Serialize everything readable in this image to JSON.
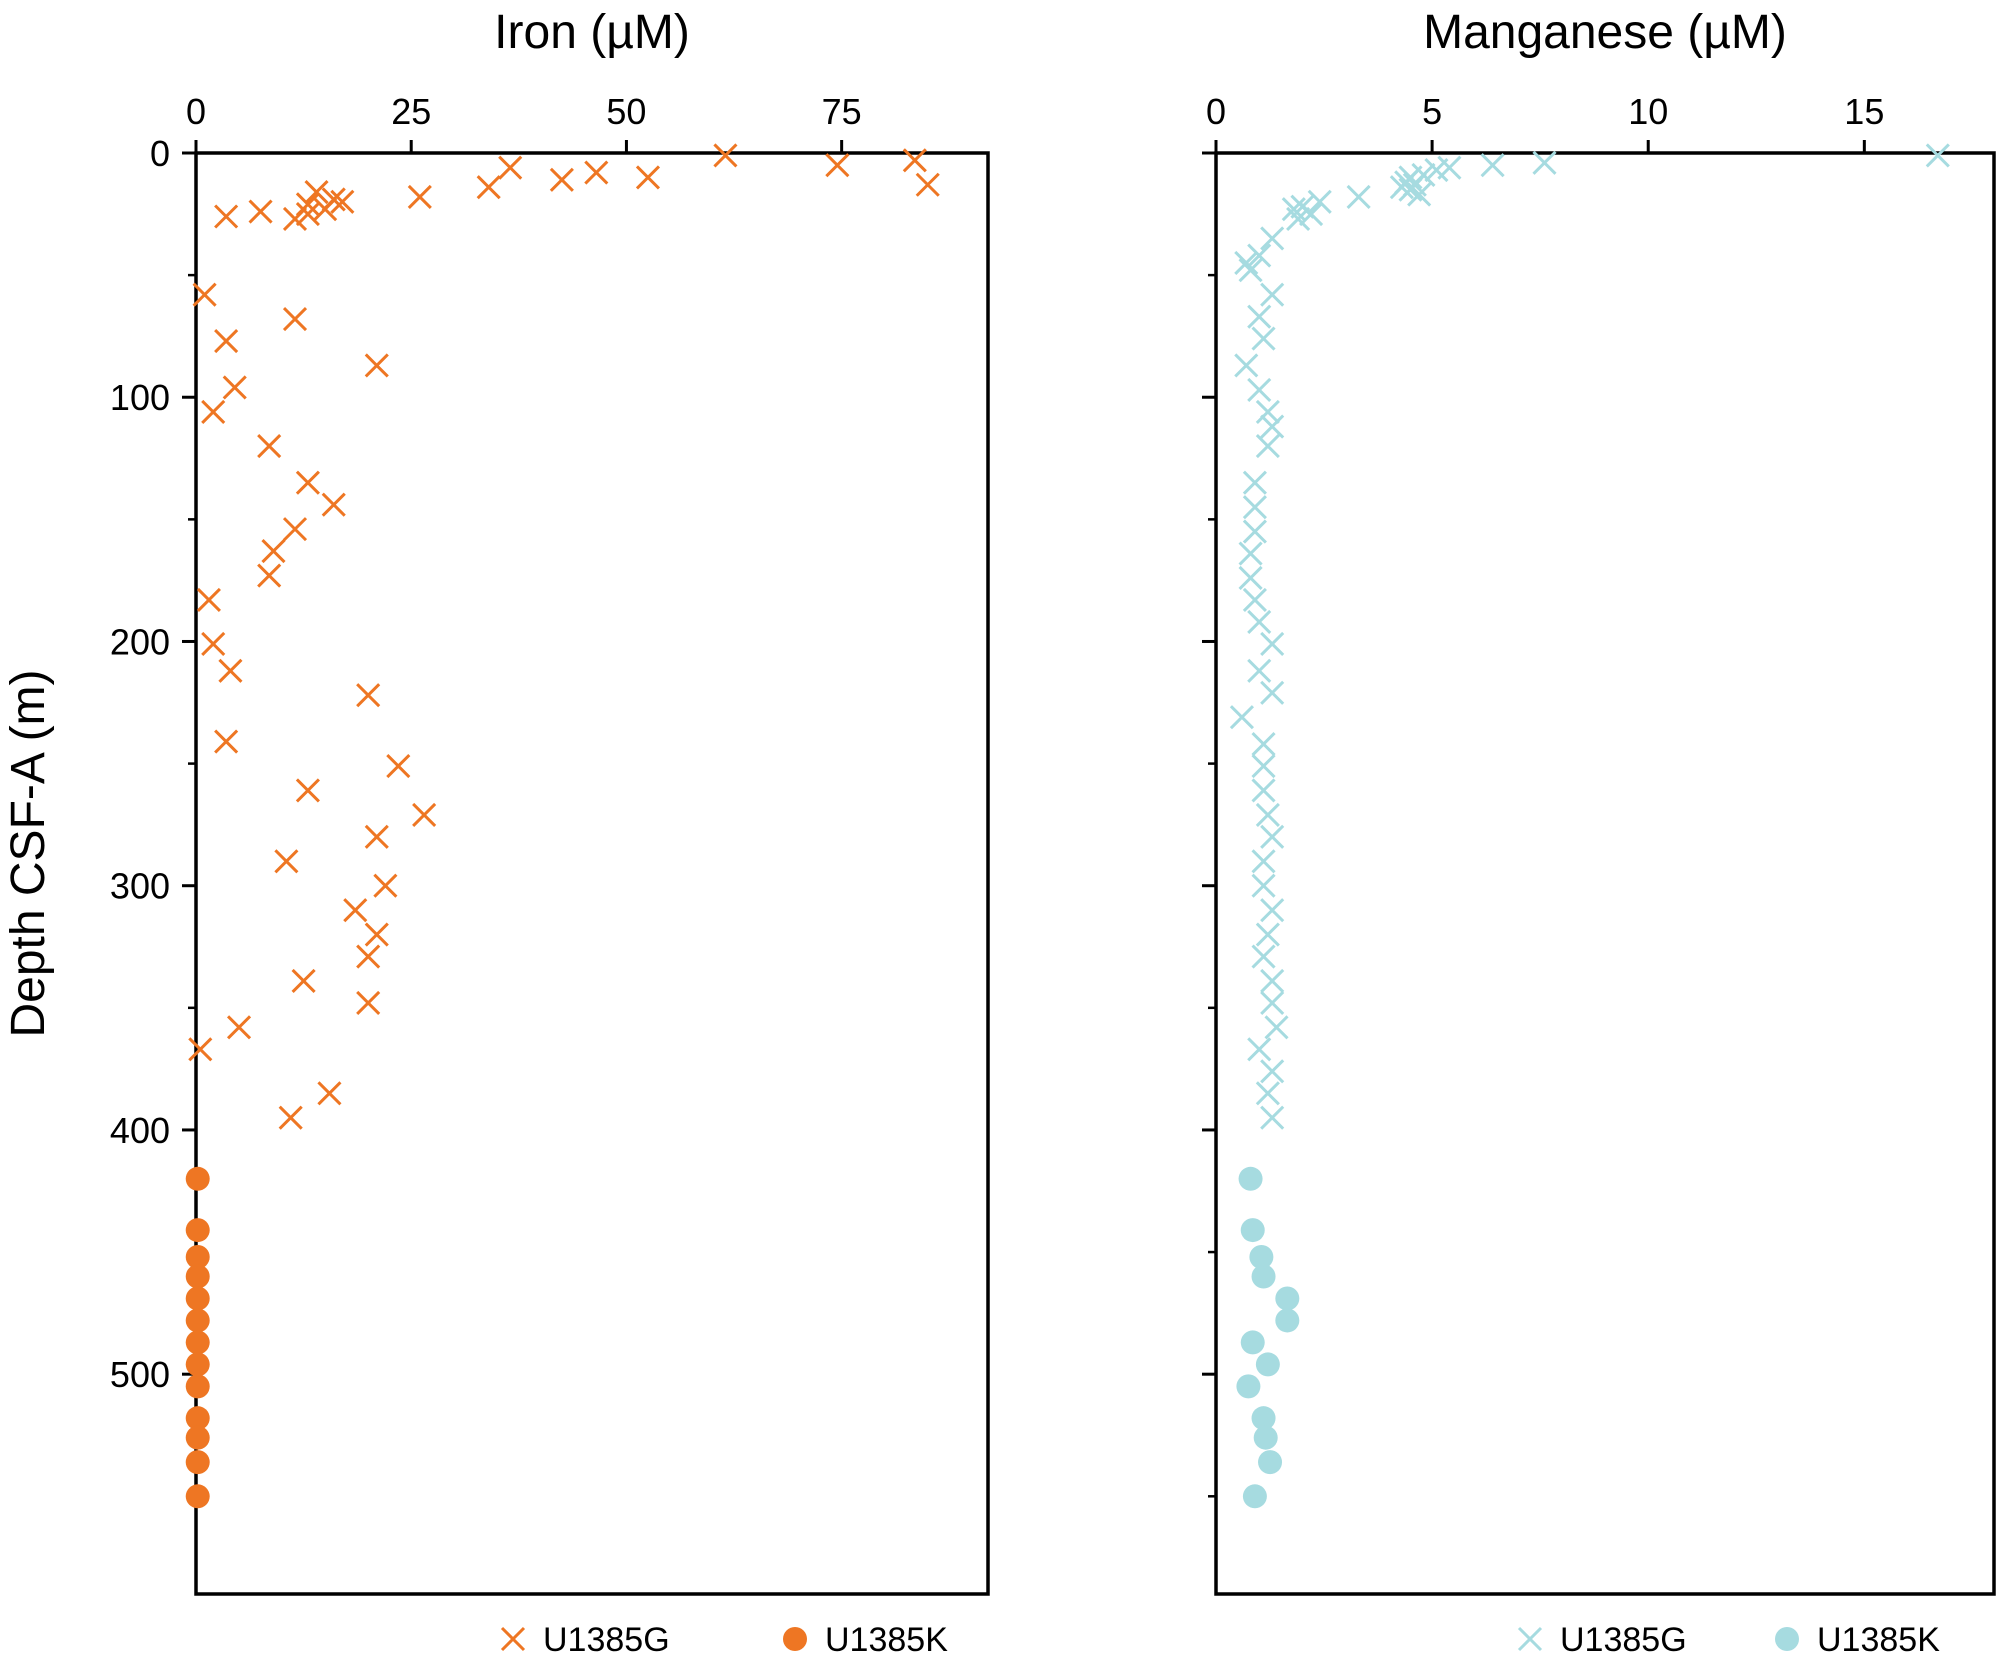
{
  "chart_data": [
    {
      "type": "scatter",
      "title": "",
      "xlabel": "Iron (µM)",
      "ylabel": "Depth CSF-A (m)",
      "xlim": [
        0,
        92
      ],
      "ylim": [
        0,
        590
      ],
      "y_inverted": true,
      "x_axis_position": "top",
      "xticks": [
        0,
        25,
        50,
        75
      ],
      "yticks": [
        0,
        100,
        200,
        300,
        400,
        500
      ],
      "y_minor_ticks": [
        50,
        150,
        250,
        350,
        450,
        550
      ],
      "grid": false,
      "legend": "bottom",
      "colors": {
        "main": "#ee7623"
      },
      "series": [
        {
          "name": "U1385G",
          "marker": "x",
          "points": [
            [
              61.5,
              1
            ],
            [
              83.5,
              3
            ],
            [
              74.5,
              5
            ],
            [
              36.5,
              6
            ],
            [
              46.5,
              8
            ],
            [
              42.5,
              11
            ],
            [
              52.5,
              10
            ],
            [
              34,
              14
            ],
            [
              85,
              13
            ],
            [
              14,
              16
            ],
            [
              26,
              18
            ],
            [
              16,
              19
            ],
            [
              13,
              21
            ],
            [
              17,
              20
            ],
            [
              15,
              23
            ],
            [
              7.5,
              24
            ],
            [
              13,
              25
            ],
            [
              3.5,
              26
            ],
            [
              11.5,
              27
            ],
            [
              1,
              58
            ],
            [
              11.5,
              68
            ],
            [
              3.5,
              77
            ],
            [
              21,
              87
            ],
            [
              4.5,
              96
            ],
            [
              2,
              106
            ],
            [
              8.5,
              120
            ],
            [
              13,
              135
            ],
            [
              16,
              144
            ],
            [
              11.5,
              154
            ],
            [
              9,
              163
            ],
            [
              8.5,
              173
            ],
            [
              1.5,
              183
            ],
            [
              2,
              201
            ],
            [
              4,
              212
            ],
            [
              20,
              222
            ],
            [
              3.5,
              241
            ],
            [
              23.5,
              251
            ],
            [
              13,
              261
            ],
            [
              26.5,
              271
            ],
            [
              21,
              280
            ],
            [
              10.5,
              290
            ],
            [
              22,
              300
            ],
            [
              18.5,
              310
            ],
            [
              21,
              320
            ],
            [
              20,
              329
            ],
            [
              12.5,
              339
            ],
            [
              20,
              348
            ],
            [
              5,
              358
            ],
            [
              0.5,
              367
            ],
            [
              15.5,
              385
            ],
            [
              11,
              395
            ]
          ]
        },
        {
          "name": "U1385K",
          "marker": "circle",
          "points": [
            [
              0.2,
              420
            ],
            [
              0.2,
              441
            ],
            [
              0.2,
              452
            ],
            [
              0.2,
              460
            ],
            [
              0.2,
              469
            ],
            [
              0.2,
              478
            ],
            [
              0.2,
              487
            ],
            [
              0.2,
              496
            ],
            [
              0.2,
              505
            ],
            [
              0.2,
              518
            ],
            [
              0.2,
              526
            ],
            [
              0.2,
              536
            ],
            [
              0.2,
              550
            ]
          ]
        }
      ]
    },
    {
      "type": "scatter",
      "title": "",
      "xlabel": "Manganese (µM)",
      "ylabel": "",
      "xlim": [
        0,
        18
      ],
      "ylim": [
        0,
        590
      ],
      "y_inverted": true,
      "x_axis_position": "top",
      "xticks": [
        0,
        5,
        10,
        15
      ],
      "yticks": [
        0,
        100,
        200,
        300,
        400,
        500
      ],
      "y_minor_ticks": [
        50,
        150,
        250,
        350,
        450,
        550
      ],
      "grid": false,
      "legend": "bottom",
      "colors": {
        "main": "#a6dbe0"
      },
      "series": [
        {
          "name": "U1385G",
          "marker": "x",
          "points": [
            [
              16.7,
              1
            ],
            [
              7.6,
              4
            ],
            [
              6.4,
              5
            ],
            [
              5.4,
              6
            ],
            [
              5.1,
              7
            ],
            [
              4.8,
              9
            ],
            [
              4.5,
              10
            ],
            [
              4.4,
              12
            ],
            [
              4.6,
              13
            ],
            [
              4.3,
              14
            ],
            [
              4.5,
              15
            ],
            [
              4.7,
              17
            ],
            [
              3.3,
              18
            ],
            [
              2.4,
              20
            ],
            [
              2.0,
              22
            ],
            [
              1.8,
              23
            ],
            [
              2.2,
              25
            ],
            [
              1.9,
              27
            ],
            [
              1.3,
              35
            ],
            [
              1.0,
              42
            ],
            [
              0.7,
              45
            ],
            [
              0.8,
              48
            ],
            [
              1.3,
              58
            ],
            [
              1.0,
              67
            ],
            [
              1.1,
              76
            ],
            [
              0.7,
              87
            ],
            [
              1.0,
              97
            ],
            [
              1.2,
              106
            ],
            [
              1.3,
              112
            ],
            [
              1.2,
              120
            ],
            [
              0.9,
              135
            ],
            [
              0.9,
              145
            ],
            [
              0.9,
              155
            ],
            [
              0.8,
              164
            ],
            [
              0.8,
              174
            ],
            [
              0.9,
              183
            ],
            [
              1.0,
              192
            ],
            [
              1.3,
              201
            ],
            [
              1.0,
              212
            ],
            [
              1.3,
              221
            ],
            [
              0.6,
              231
            ],
            [
              1.1,
              242
            ],
            [
              1.1,
              251
            ],
            [
              1.1,
              261
            ],
            [
              1.2,
              271
            ],
            [
              1.3,
              280
            ],
            [
              1.1,
              290
            ],
            [
              1.1,
              300
            ],
            [
              1.3,
              310
            ],
            [
              1.2,
              320
            ],
            [
              1.1,
              329
            ],
            [
              1.3,
              339
            ],
            [
              1.3,
              348
            ],
            [
              1.4,
              358
            ],
            [
              1.0,
              367
            ],
            [
              1.3,
              376
            ],
            [
              1.2,
              385
            ],
            [
              1.3,
              395
            ]
          ]
        },
        {
          "name": "U1385K",
          "marker": "circle",
          "points": [
            [
              0.8,
              420
            ],
            [
              0.85,
              441
            ],
            [
              1.05,
              452
            ],
            [
              1.1,
              460
            ],
            [
              1.65,
              469
            ],
            [
              1.65,
              478
            ],
            [
              0.85,
              487
            ],
            [
              1.2,
              496
            ],
            [
              0.75,
              505
            ],
            [
              1.1,
              518
            ],
            [
              1.15,
              526
            ],
            [
              1.25,
              536
            ],
            [
              0.9,
              550
            ]
          ]
        }
      ]
    }
  ]
}
